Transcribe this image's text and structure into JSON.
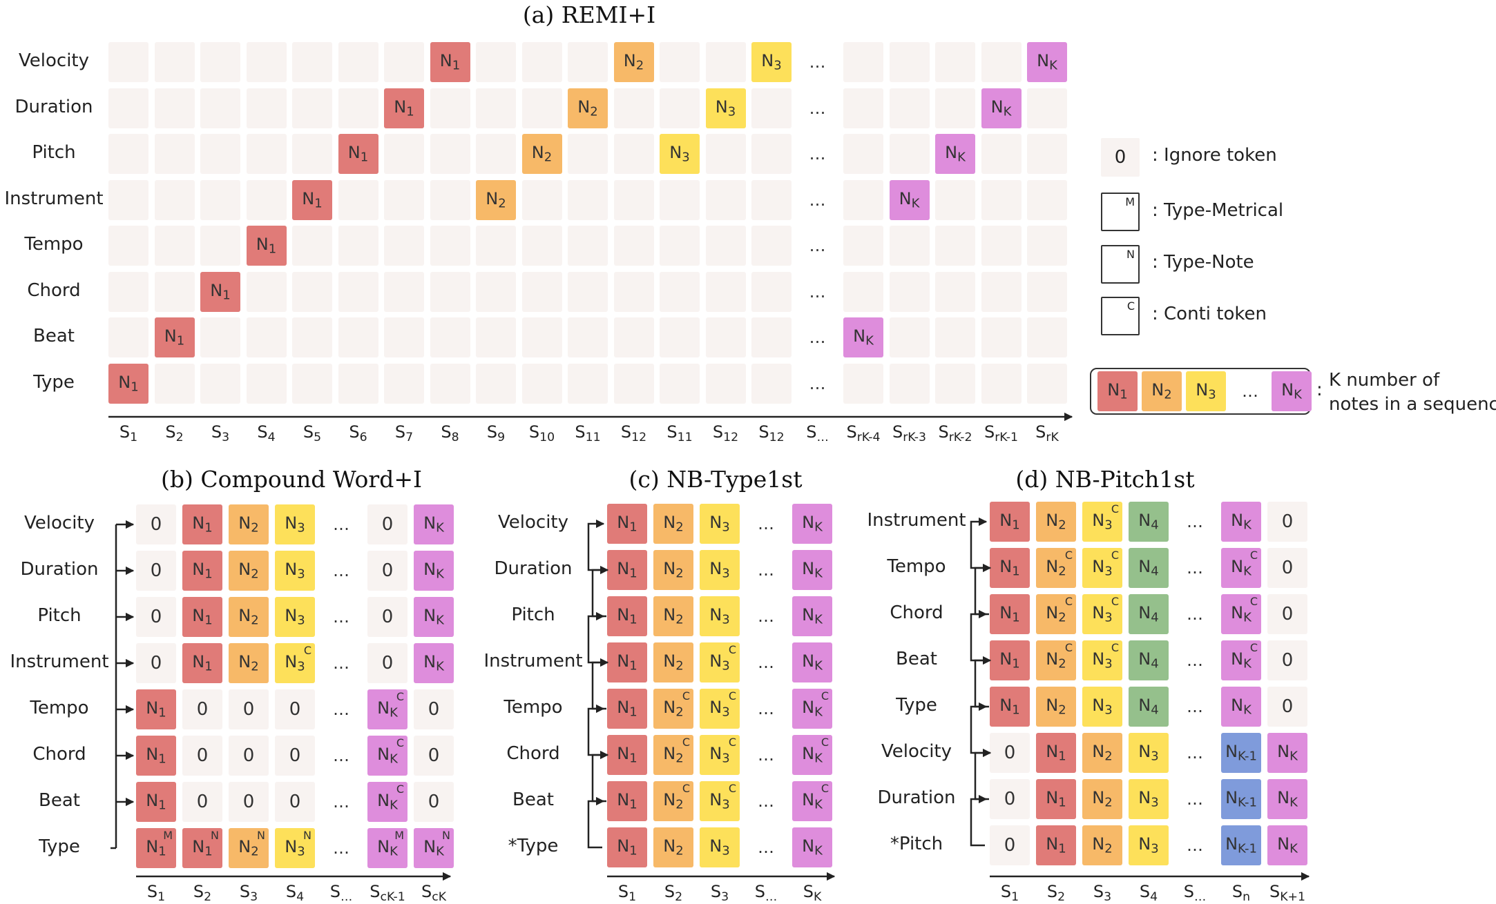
{
  "panel_a": {
    "title": "(a) REMI+I",
    "rows": [
      "Velocity",
      "Duration",
      "Pitch",
      "Instrument",
      "Tempo",
      "Chord",
      "Beat",
      "Type"
    ],
    "x_labels": [
      "S1",
      "S2",
      "S3",
      "S4",
      "S5",
      "S6",
      "S7",
      "S8",
      "S9",
      "S10",
      "S11",
      "S12",
      "S11",
      "S12",
      "S12",
      "S…",
      "SrK-4",
      "SrK-3",
      "SrK-2",
      "SrK-1",
      "SrK"
    ],
    "ellipsis": "…"
  },
  "panel_b": {
    "title": "(b) Compound Word+I",
    "rows": [
      "Velocity",
      "Duration",
      "Pitch",
      "Instrument",
      "Tempo",
      "Chord",
      "Beat",
      "Type"
    ],
    "x_labels": [
      "S1",
      "S2",
      "S3",
      "S4",
      "S…",
      "ScK-1",
      "ScK"
    ],
    "ellipsis": "…"
  },
  "panel_c": {
    "title": "(c) NB-Type1st",
    "rows": [
      "Velocity",
      "Duration",
      "Pitch",
      "Instrument",
      "Tempo",
      "Chord",
      "Beat",
      "*Type"
    ],
    "x_labels": [
      "S1",
      "S2",
      "S3",
      "S…",
      "SK"
    ],
    "ellipsis": "…"
  },
  "panel_d": {
    "title": "(d) NB-Pitch1st",
    "rows": [
      "Instrument",
      "Tempo",
      "Chord",
      "Beat",
      "Type",
      "Velocity",
      "Duration",
      "*Pitch"
    ],
    "x_labels": [
      "S1",
      "S2",
      "S3",
      "S4",
      "S…",
      "Sn",
      "SK+1"
    ],
    "ellipsis": "…"
  },
  "legend": {
    "ignore_symbol": "0",
    "ignore": ": Ignore token",
    "metrical_sup": "M",
    "metrical": ": Type-Metrical",
    "note_sup": "N",
    "note": ": Type-Note",
    "conti_sup": "C",
    "conti": ": Conti token",
    "notes_line1": "K number of",
    "notes_line2": "notes in a sequence",
    "notes_colon": ":",
    "notes_tokens": [
      "N1",
      "N2",
      "N3",
      "…",
      "NK"
    ]
  },
  "colors": {
    "n1": "#e07b78",
    "n2": "#f7b968",
    "n3": "#fde05a",
    "n4": "#95c08c",
    "nk": "#de8ddc",
    "nk_minus_1": "#7f9bdb",
    "empty": "#f8f3f1"
  }
}
